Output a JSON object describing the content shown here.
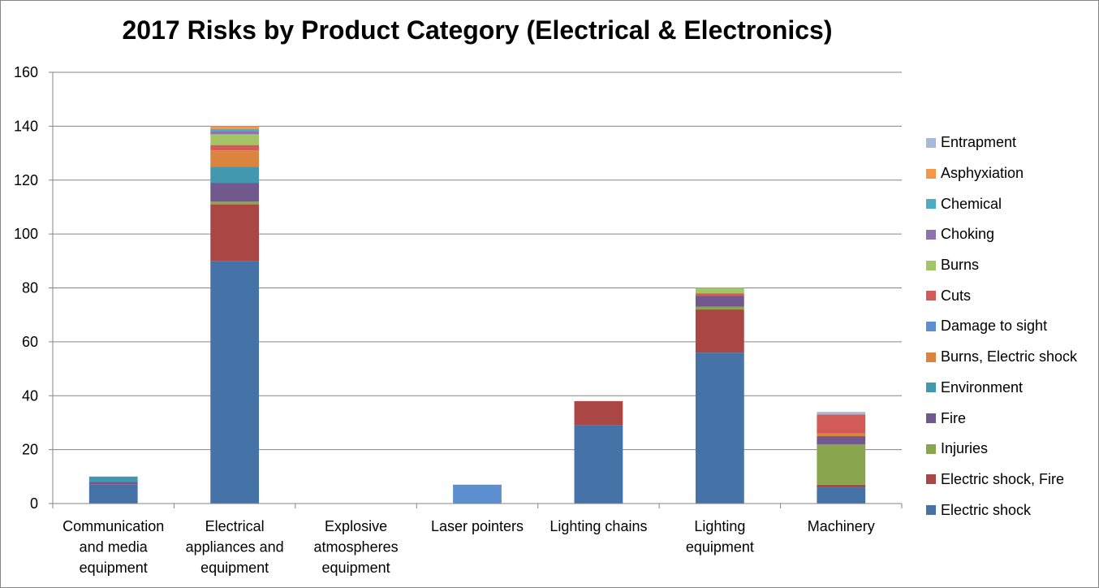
{
  "chart_data": {
    "type": "bar",
    "stacked": true,
    "title": "2017 Risks by Product Category (Electrical & Electronics)",
    "xlabel": "",
    "ylabel": "",
    "ylim": [
      0,
      160
    ],
    "yticks": [
      0,
      20,
      40,
      60,
      80,
      100,
      120,
      140,
      160
    ],
    "grid": true,
    "legend_position": "right",
    "categories": [
      [
        "Communication",
        "and media",
        "equipment"
      ],
      [
        "Electrical",
        "appliances and",
        "equipment"
      ],
      [
        "Explosive",
        "atmospheres",
        "equipment"
      ],
      [
        "Laser pointers"
      ],
      [
        "Lighting chains"
      ],
      [
        "Lighting",
        "equipment"
      ],
      [
        "Machinery"
      ]
    ],
    "series": [
      {
        "name": "Electric shock",
        "color": "#4572A7",
        "values": [
          7,
          90,
          0,
          0,
          29,
          56,
          6
        ]
      },
      {
        "name": "Electric shock, Fire",
        "color": "#AA4643",
        "values": [
          0,
          21,
          0,
          0,
          9,
          16,
          1
        ]
      },
      {
        "name": "Injuries",
        "color": "#89A54E",
        "values": [
          0,
          1,
          0,
          0,
          0,
          1,
          15
        ]
      },
      {
        "name": "Fire",
        "color": "#71588F",
        "values": [
          1,
          7,
          0,
          0,
          0,
          4,
          3
        ]
      },
      {
        "name": "Environment",
        "color": "#4198AF",
        "values": [
          2,
          6,
          0,
          0,
          0,
          0,
          0
        ]
      },
      {
        "name": "Burns, Electric shock",
        "color": "#DB843D",
        "values": [
          0,
          6,
          0,
          0,
          0,
          0,
          1
        ]
      },
      {
        "name": "Damage to sight",
        "color": "#5B8FD0",
        "values": [
          0,
          0,
          0,
          7,
          0,
          0,
          0
        ]
      },
      {
        "name": "Cuts",
        "color": "#D25A57",
        "values": [
          0,
          2,
          0,
          0,
          0,
          1,
          7
        ]
      },
      {
        "name": "Burns",
        "color": "#A4C567",
        "values": [
          0,
          4,
          0,
          0,
          0,
          2,
          0
        ]
      },
      {
        "name": "Choking",
        "color": "#8E72B0",
        "values": [
          0,
          1,
          0,
          0,
          0,
          0,
          0
        ]
      },
      {
        "name": "Chemical",
        "color": "#4BACC6",
        "values": [
          0,
          1,
          0,
          0,
          0,
          0,
          0
        ]
      },
      {
        "name": "Asphyxiation",
        "color": "#F79646",
        "values": [
          0,
          1,
          0,
          0,
          0,
          0,
          0
        ]
      },
      {
        "name": "Entrapment",
        "color": "#A7B9DB",
        "values": [
          0,
          0,
          0,
          0,
          0,
          0,
          1
        ]
      }
    ]
  }
}
